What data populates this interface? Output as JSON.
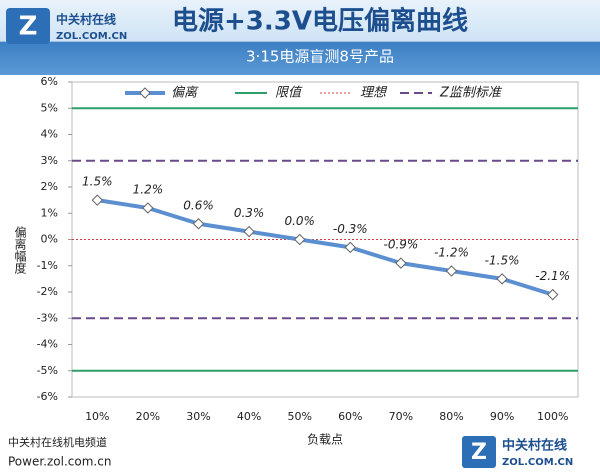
{
  "branding": {
    "logo_name": "中关村在线",
    "logo_url": "ZOL.COM.CN",
    "footer_channel": "中关村在线机电频道",
    "footer_site": "Power.zol.com.cn"
  },
  "chart_data": {
    "type": "line",
    "title": "电源+3.3V电压偏离曲线",
    "subtitle": "3·15电源盲测8号产品",
    "y_label": "偏离幅度",
    "x_label": "负载点",
    "categories": [
      "10%",
      "20%",
      "30%",
      "40%",
      "50%",
      "60%",
      "70%",
      "80%",
      "90%",
      "100%"
    ],
    "series": [
      {
        "name": "偏离",
        "color": "#5b8fd0",
        "values": [
          1.5,
          1.2,
          0.6,
          0.3,
          0.0,
          -0.3,
          -0.9,
          -1.2,
          -1.5,
          -2.1
        ],
        "value_labels": [
          "1.5%",
          "1.2%",
          "0.6%",
          "0.3%",
          "0.0%",
          "-0.3%",
          "-0.9%",
          "-1.2%",
          "-1.5%",
          "-2.1%"
        ]
      }
    ],
    "reference_lines": [
      {
        "name": "限值",
        "color": "#2e9e6a",
        "style": "solid",
        "values": [
          5,
          -5
        ]
      },
      {
        "name": "理想",
        "color": "#d04040",
        "style": "dotted",
        "values": [
          0
        ]
      },
      {
        "name": "Z监制标准",
        "color": "#6a4a8a",
        "style": "dashed",
        "values": [
          3,
          -3
        ]
      }
    ],
    "ylim": [
      -6,
      6
    ],
    "yticks": [
      {
        "value": 6,
        "label": "6%"
      },
      {
        "value": 5,
        "label": "5%"
      },
      {
        "value": 4,
        "label": "4%"
      },
      {
        "value": 3,
        "label": "3%"
      },
      {
        "value": 2,
        "label": "2%"
      },
      {
        "value": 1,
        "label": "1%"
      },
      {
        "value": 0,
        "label": "0%"
      },
      {
        "value": -1,
        "label": "-1%"
      },
      {
        "value": -2,
        "label": "-2%"
      },
      {
        "value": -3,
        "label": "-3%"
      },
      {
        "value": -4,
        "label": "-4%"
      },
      {
        "value": -5,
        "label": "-5%"
      },
      {
        "value": -6,
        "label": "-6%"
      }
    ],
    "grid": false
  }
}
